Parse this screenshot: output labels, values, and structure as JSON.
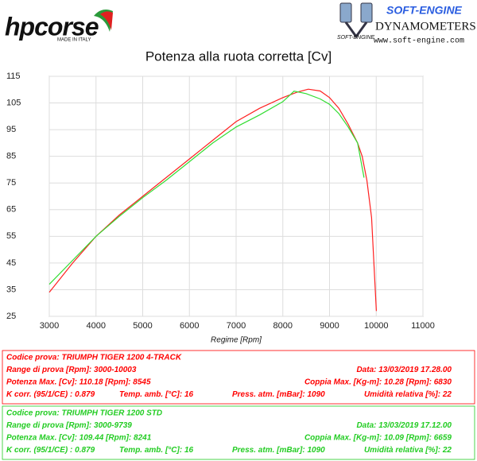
{
  "header": {
    "brand": "hpcorse",
    "brand_tagline": "MADE IN ITALY",
    "vendor": "SOFT-ENGINE",
    "vendor_small": "SOFT-ENGINE",
    "vendor_product": "DYNAMOMETERS",
    "vendor_url": "www.soft-engine.com"
  },
  "chart_data": {
    "type": "line",
    "title": "Potenza alla ruota corretta [Cv]",
    "x_label": "Regime [Rpm]",
    "xlim": [
      3000,
      11000
    ],
    "xticks": [
      3000,
      4000,
      5000,
      6000,
      7000,
      8000,
      9000,
      10000,
      11000
    ],
    "ylim": [
      25,
      115
    ],
    "yticks": [
      25,
      35,
      45,
      55,
      65,
      75,
      85,
      95,
      105,
      115
    ],
    "grid": true,
    "series": [
      {
        "name": "TRIUMPH TIGER 1200 4-TRACK",
        "color": "#ff2020",
        "x": [
          3000,
          3500,
          4000,
          4500,
          5000,
          5500,
          6000,
          6500,
          7000,
          7500,
          8000,
          8300,
          8545,
          8800,
          9000,
          9200,
          9400,
          9600,
          9700,
          9800,
          9900,
          9950,
          10003
        ],
        "values": [
          34,
          45,
          55,
          63,
          70,
          77,
          84,
          91,
          98,
          103,
          107,
          109,
          110.18,
          109.5,
          107,
          103,
          97,
          90,
          85,
          76,
          62,
          45,
          27
        ]
      },
      {
        "name": "TRIUMPH TIGER 1200 STD",
        "color": "#33dd33",
        "x": [
          3000,
          3500,
          4000,
          4500,
          5000,
          5500,
          6000,
          6500,
          7000,
          7500,
          8000,
          8241,
          8500,
          8800,
          9000,
          9200,
          9400,
          9600,
          9739
        ],
        "values": [
          37,
          46,
          55,
          62.5,
          69.5,
          76,
          83,
          90,
          96,
          100.5,
          105.5,
          109.44,
          108.5,
          106.5,
          104.5,
          101,
          96,
          90,
          77
        ]
      }
    ]
  },
  "tests": [
    {
      "color": "#ff0000",
      "rows": [
        [
          "Codice prova: TRIUMPH TIGER 1200 4-TRACK"
        ],
        [
          "Range di prova [Rpm]: 3000-10003",
          "Data: 13/03/2019   17.28.00"
        ],
        [
          "Potenza Max. [Cv]: 110.18   [Rpm]: 8545",
          "Coppia Max. [Kg-m]: 10.28   [Rpm]: 6830"
        ],
        [
          "K corr. (95/1/CE) : 0.879",
          "Temp. amb. [°C]: 16",
          "Press. atm. [mBar]: 1090",
          "Umidità relativa [%]: 22"
        ]
      ]
    },
    {
      "color": "#22cc22",
      "rows": [
        [
          "Codice prova: TRIUMPH TIGER 1200 STD"
        ],
        [
          "Range di prova [Rpm]: 3000-9739",
          "Data: 13/03/2019   17.12.00"
        ],
        [
          "Potenza Max. [Cv]: 109.44   [Rpm]: 8241",
          "Coppia Max. [Kg-m]: 10.09   [Rpm]: 6659"
        ],
        [
          "K corr. (95/1/CE) : 0.879",
          "Temp. amb. [°C]: 16",
          "Press. atm. [mBar]: 1090",
          "Umidità relativa [%]: 22"
        ]
      ]
    }
  ]
}
